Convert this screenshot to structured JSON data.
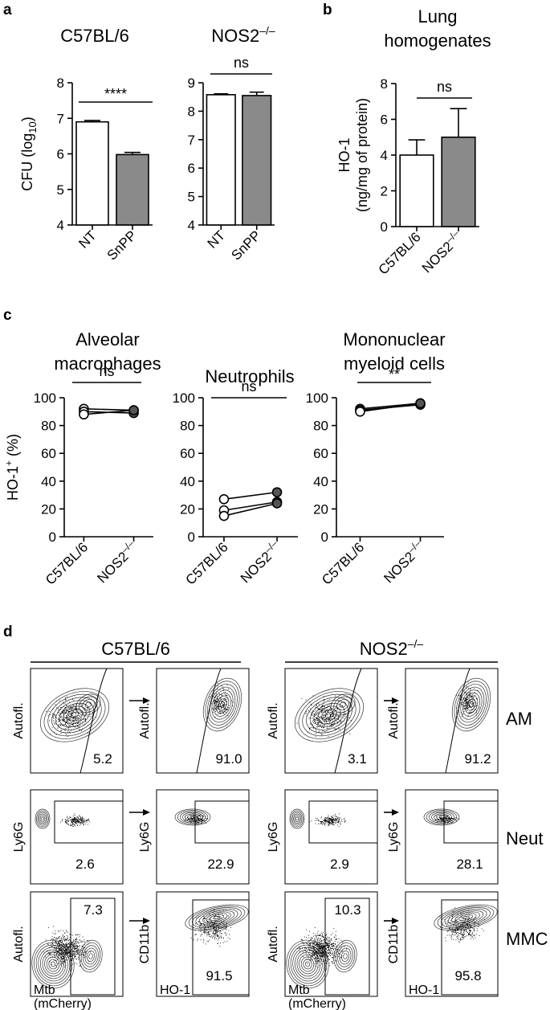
{
  "panel_letters": {
    "a": "a",
    "b": "b",
    "c": "c",
    "d": "d"
  },
  "chart_data": [
    {
      "id": "a1",
      "type": "bar",
      "title": "C57BL/6",
      "ylabel": "CFU (log10)",
      "ylabel_main": "CFU (log",
      "ylabel_sub": "10",
      "ylabel_close": ")",
      "ylim": [
        4,
        8
      ],
      "yticks": [
        4,
        5,
        6,
        7,
        8
      ],
      "categories": [
        "NT",
        "SnPP"
      ],
      "values": [
        6.9,
        5.98
      ],
      "errors": [
        0.04,
        0.06
      ],
      "fills": [
        "#ffffff",
        "#8a8a8a"
      ],
      "significance": "****"
    },
    {
      "id": "a2",
      "type": "bar",
      "title": "NOS2–/–",
      "title_main": "NOS2",
      "title_sup": "–/–",
      "ylim": [
        4,
        9
      ],
      "yticks": [
        4,
        5,
        6,
        7,
        8,
        9
      ],
      "categories": [
        "NT",
        "SnPP"
      ],
      "values": [
        8.58,
        8.55
      ],
      "errors": [
        0.03,
        0.12
      ],
      "fills": [
        "#ffffff",
        "#8a8a8a"
      ],
      "significance": "ns"
    },
    {
      "id": "b",
      "type": "bar",
      "title": [
        "Lung",
        "homogenates"
      ],
      "ylabel": [
        "HO-1",
        "(ng/mg of protein)"
      ],
      "ylim": [
        0,
        8
      ],
      "yticks": [
        0,
        2,
        4,
        6,
        8
      ],
      "categories": [
        "C57BL/6",
        "NOS2–/–"
      ],
      "cat_main": [
        "C57BL/6",
        "NOS2"
      ],
      "cat_sup": [
        "",
        "–/–"
      ],
      "values": [
        4.0,
        5.0
      ],
      "errors": [
        0.85,
        1.6
      ],
      "fills": [
        "#ffffff",
        "#8a8a8a"
      ],
      "significance": "ns"
    },
    {
      "id": "c1",
      "type": "scatter",
      "title": [
        "Alveolar",
        "macrophages"
      ],
      "ylabel": "HO-1+ (%)",
      "ylabel_main": "HO-1",
      "ylabel_sup": "+",
      "ylabel_rest": " (%)",
      "ylim": [
        0,
        100
      ],
      "yticks": [
        0,
        20,
        40,
        60,
        80,
        100
      ],
      "categories": [
        "C57BL/6",
        "NOS2–/–"
      ],
      "cat_main": [
        "C57BL/6",
        "NOS2"
      ],
      "cat_sup": [
        "",
        "–/–"
      ],
      "pairs": [
        [
          92,
          91
        ],
        [
          90,
          89
        ],
        [
          88,
          91
        ]
      ],
      "significance": "ns"
    },
    {
      "id": "c2",
      "type": "scatter",
      "title": [
        "Neutrophils"
      ],
      "ylim": [
        0,
        100
      ],
      "yticks": [
        0,
        20,
        40,
        60,
        80,
        100
      ],
      "categories": [
        "C57BL/6",
        "NOS2–/–"
      ],
      "cat_main": [
        "C57BL/6",
        "NOS2"
      ],
      "cat_sup": [
        "",
        "–/–"
      ],
      "pairs": [
        [
          27,
          32
        ],
        [
          19,
          25
        ],
        [
          15,
          24
        ]
      ],
      "significance": "ns"
    },
    {
      "id": "c3",
      "type": "scatter",
      "title": [
        "Mononuclear",
        "myeloid cells"
      ],
      "ylim": [
        0,
        100
      ],
      "yticks": [
        0,
        20,
        40,
        60,
        80,
        100
      ],
      "categories": [
        "C57BL/6",
        "NOS2–/–"
      ],
      "cat_main": [
        "C57BL/6",
        "NOS2"
      ],
      "cat_sup": [
        "",
        "–/–"
      ],
      "pairs": [
        [
          92,
          96
        ],
        [
          91,
          95
        ],
        [
          90,
          96
        ]
      ],
      "significance": "**"
    }
  ],
  "flow": {
    "group_titles": [
      "C57BL/6",
      "NOS2–/–"
    ],
    "group_title_main": [
      "C57BL/6",
      "NOS2"
    ],
    "group_title_sup": [
      "",
      "–/–"
    ],
    "row_labels": [
      "AM",
      "Neut",
      "MMC"
    ],
    "first_ylabels": [
      "Autofl.",
      "Ly6G",
      "Autofl."
    ],
    "second_ylabels": [
      "Autofl.",
      "Ly6G",
      "CD11b"
    ],
    "first_xlabel": [
      "Mtb",
      "(mCherry)"
    ],
    "second_xlabel": "HO-1",
    "first_values": [
      [
        "5.2",
        "2.6",
        "7.3"
      ],
      [
        "3.1",
        "2.9",
        "10.3"
      ]
    ],
    "second_values": [
      [
        "91.0",
        "22.9",
        "91.5"
      ],
      [
        "91.2",
        "28.1",
        "95.8"
      ]
    ]
  }
}
